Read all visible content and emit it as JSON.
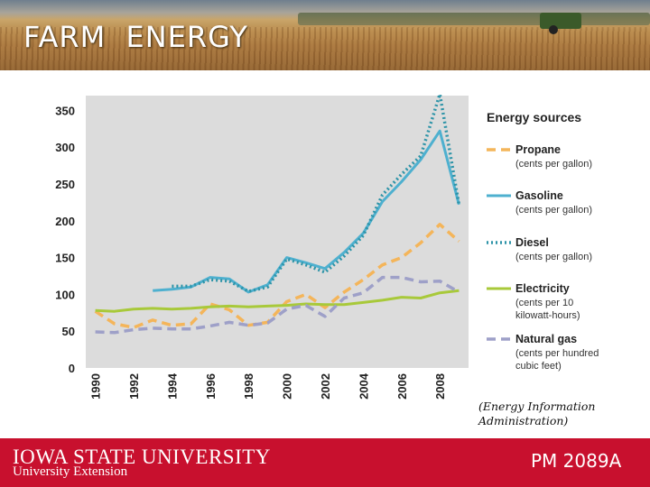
{
  "header": {
    "title": "FARM  ENERGY"
  },
  "legend": {
    "title": "Energy sources",
    "entries": [
      {
        "name": "Propane",
        "unit_lines": [
          "(cents per gallon)"
        ]
      },
      {
        "name": "Gasoline",
        "unit_lines": [
          "(cents per gallon)"
        ]
      },
      {
        "name": "Diesel",
        "unit_lines": [
          "(cents per gallon)"
        ]
      },
      {
        "name": "Electricity",
        "unit_lines": [
          "(cents per 10",
          "kilowatt-hours)"
        ]
      },
      {
        "name": "Natural gas",
        "unit_lines": [
          "(cents per hundred",
          "cubic feet)"
        ]
      }
    ]
  },
  "source_note": "(Energy Information Administration)",
  "footer": {
    "university": "IOWA STATE UNIVERSITY",
    "extension": "University Extension",
    "pub_code": "PM 2089A"
  },
  "colors": {
    "propane": "#f4b55a",
    "gasoline": "#4eb0cf",
    "diesel": "#2e94a8",
    "electricity": "#a8c93a",
    "natural_gas": "#9ea0c8",
    "plot_background": "#dcdcdc",
    "footer_red": "#c8102e"
  },
  "chart_data": {
    "type": "line",
    "title": "",
    "xlabel": "",
    "ylabel": "",
    "ylim": [
      0,
      370
    ],
    "xlim": [
      1989.5,
      2009.5
    ],
    "x_tick_labels": [
      "1990",
      "1992",
      "1994",
      "1996",
      "1998",
      "2000",
      "2002",
      "2004",
      "2006",
      "2008"
    ],
    "y_tick_labels": [
      "0",
      "50",
      "100",
      "150",
      "200",
      "250",
      "300",
      "350"
    ],
    "grid": false,
    "legend_position": "right",
    "series": [
      {
        "name": "Propane",
        "style": "dashed",
        "color_key": "propane",
        "x": [
          1990,
          1991,
          1992,
          1993,
          1994,
          1995,
          1996,
          1997,
          1998,
          1999,
          2000,
          2001,
          2002,
          2003,
          2004,
          2005,
          2006,
          2007,
          2008,
          2009
        ],
        "y": [
          77,
          60,
          55,
          65,
          58,
          60,
          87,
          79,
          58,
          62,
          90,
          100,
          82,
          103,
          120,
          140,
          150,
          170,
          195,
          172
        ]
      },
      {
        "name": "Gasoline",
        "style": "solid",
        "color_key": "gasoline",
        "x": [
          1993,
          1994,
          1995,
          1996,
          1997,
          1998,
          1999,
          2000,
          2001,
          2002,
          2003,
          2004,
          2005,
          2006,
          2007,
          2008,
          2009
        ],
        "y": [
          105,
          107,
          110,
          123,
          121,
          103,
          113,
          150,
          143,
          135,
          157,
          183,
          226,
          253,
          283,
          322,
          222
        ]
      },
      {
        "name": "Diesel",
        "style": "dotted",
        "color_key": "diesel",
        "x": [
          1994,
          1995,
          1996,
          1997,
          1998,
          1999,
          2000,
          2001,
          2002,
          2003,
          2004,
          2005,
          2006,
          2007,
          2008,
          2009
        ],
        "y": [
          111,
          111,
          120,
          118,
          104,
          110,
          148,
          140,
          130,
          152,
          180,
          235,
          263,
          288,
          372,
          222
        ]
      },
      {
        "name": "Electricity",
        "style": "solid",
        "color_key": "electricity",
        "x": [
          1990,
          1991,
          1992,
          1993,
          1994,
          1995,
          1996,
          1997,
          1998,
          1999,
          2000,
          2001,
          2002,
          2003,
          2004,
          2005,
          2006,
          2007,
          2008,
          2009
        ],
        "y": [
          78,
          77,
          80,
          81,
          80,
          81,
          83,
          84,
          83,
          84,
          85,
          87,
          86,
          86,
          89,
          92,
          96,
          95,
          102,
          105
        ]
      },
      {
        "name": "Natural gas",
        "style": "dashed",
        "color_key": "natural_gas",
        "x": [
          1990,
          1991,
          1992,
          1993,
          1994,
          1995,
          1996,
          1997,
          1998,
          1999,
          2000,
          2001,
          2002,
          2003,
          2004,
          2005,
          2006,
          2007,
          2008,
          2009
        ],
        "y": [
          49,
          48,
          52,
          54,
          53,
          53,
          57,
          62,
          58,
          61,
          80,
          85,
          70,
          95,
          102,
          123,
          123,
          117,
          118,
          103
        ]
      }
    ]
  }
}
